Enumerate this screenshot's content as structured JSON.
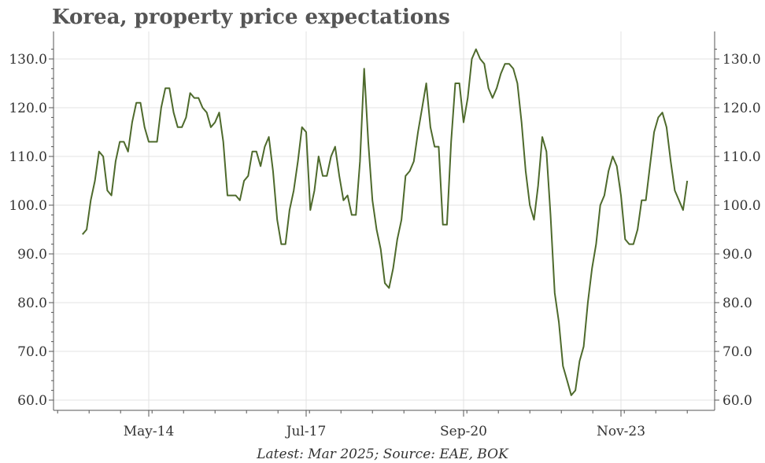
{
  "chart_data": {
    "type": "line",
    "title": "Korea, property price expectations",
    "source": "Latest: Mar 2025; Source: EAE, BOK",
    "ylim": [
      58,
      134
    ],
    "yticks": [
      "60.0",
      "70.0",
      "80.0",
      "90.0",
      "100.0",
      "110.0",
      "120.0",
      "130.0"
    ],
    "xticks": [
      {
        "label": "May-14",
        "month_index": 16
      },
      {
        "label": "Jul-17",
        "month_index": 54
      },
      {
        "label": "Sep-20",
        "month_index": 92
      },
      {
        "label": "Nov-23",
        "month_index": 130
      }
    ],
    "x_start": "Jan-13",
    "x_end": "Mar-25",
    "grid": true,
    "colors": {
      "line": "#4e6a2c",
      "grid": "#e3e3e3",
      "axis": "#555555"
    },
    "series": [
      {
        "values": [
          94,
          95,
          101,
          105,
          111,
          110,
          103,
          102,
          109,
          113,
          113,
          111,
          117,
          121,
          121,
          116,
          113,
          113,
          113,
          120,
          124,
          124,
          119,
          116,
          116,
          118,
          123,
          122,
          122,
          120,
          119,
          116,
          117,
          119,
          113,
          102,
          102,
          102,
          101,
          105,
          106,
          111,
          111,
          108,
          112,
          114,
          107,
          97,
          92,
          92,
          99,
          103,
          109,
          116,
          115,
          99,
          103,
          110,
          106,
          106,
          110,
          112,
          106,
          101,
          102,
          98,
          98,
          109,
          128,
          113,
          101,
          95,
          91,
          84,
          83,
          87,
          93,
          97,
          106,
          107,
          109,
          115,
          120,
          125,
          116,
          112,
          112,
          96,
          96,
          113,
          125,
          125,
          117,
          122,
          130,
          132,
          130,
          129,
          124,
          122,
          124,
          127,
          129,
          129,
          128,
          125,
          117,
          107,
          100,
          97,
          104,
          114,
          111,
          98,
          82,
          76,
          67,
          64,
          61,
          62,
          68,
          71,
          80,
          87,
          92,
          100,
          102,
          107,
          110,
          108,
          102,
          93,
          92,
          92,
          95,
          101,
          101,
          108,
          115,
          118,
          119,
          116,
          109,
          103,
          101,
          99,
          105
        ]
      }
    ]
  }
}
